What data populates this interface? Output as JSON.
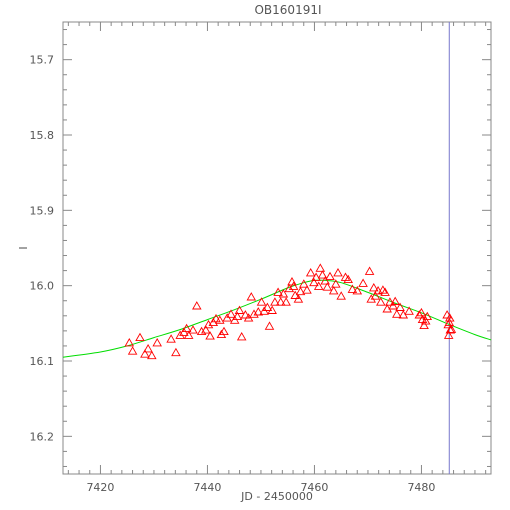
{
  "chart_data": {
    "type": "scatter",
    "title": "OB160191I",
    "xlabel": "JD - 2450000",
    "ylabel": "I",
    "xlim": [
      7413,
      7493
    ],
    "ylim": [
      16.25,
      15.65
    ],
    "y_inverted": true,
    "x_ticks": [
      7420,
      7440,
      7460,
      7480
    ],
    "y_ticks": [
      15.7,
      15.8,
      15.9,
      16.0,
      16.1,
      16.2
    ],
    "y_tick_labels": [
      "15.7",
      "15.8",
      "15.9",
      "16.0",
      "16.1",
      "16.2"
    ],
    "vertical_line_x": 7485.2,
    "marker": "open-triangle",
    "colors": {
      "points": "#ff0000",
      "model": "#00dd00",
      "vline": "#7777cc",
      "axes": "#888888",
      "text": "#555555"
    },
    "model_curve": {
      "x": [
        7413,
        7420,
        7425,
        7430,
        7435,
        7440,
        7445,
        7450,
        7455,
        7458,
        7460,
        7462,
        7465,
        7470,
        7475,
        7480,
        7485,
        7490,
        7493
      ],
      "y": [
        16.095,
        16.088,
        16.08,
        16.069,
        16.058,
        16.045,
        16.032,
        16.018,
        16.003,
        15.996,
        15.993,
        15.993,
        15.996,
        16.009,
        16.023,
        16.036,
        16.051,
        16.065,
        16.072
      ]
    },
    "series": [
      {
        "x": [
          7425.4,
          7426.0,
          7427.4,
          7428.3,
          7428.9,
          7429.6,
          7430.6,
          7433.2,
          7434.1,
          7434.9,
          7435.6,
          7436.1,
          7436.5,
          7437.3,
          7438.0,
          7438.9,
          7439.7,
          7440.2,
          7440.5,
          7441.1,
          7441.6,
          7442.3,
          7442.6,
          7443.1,
          7443.7,
          7444.4,
          7445.1,
          7445.6,
          7446.0,
          7446.4,
          7447.1,
          7447.7,
          7448.2,
          7448.7,
          7449.5,
          7450.1,
          7450.6,
          7451.2,
          7451.6,
          7452.1,
          7452.6,
          7453.2,
          7453.7,
          7454.2,
          7454.7,
          7455.3,
          7455.8,
          7456.1,
          7456.4,
          7457.0,
          7457.4,
          7458.0,
          7458.6,
          7459.3,
          7459.9,
          7460.3,
          7460.8,
          7461.1,
          7461.5,
          7462.0,
          7462.4,
          7462.9,
          7463.6,
          7464.0,
          7464.4,
          7465.0,
          7465.8,
          7466.3,
          7467.1,
          7468.0,
          7469.1,
          7470.3,
          7470.6,
          7471.1,
          7471.4,
          7471.9,
          7472.4,
          7472.8,
          7473.2,
          7473.6,
          7474.1,
          7474.7,
          7475.1,
          7475.4,
          7476.0,
          7476.6,
          7477.7,
          7479.6,
          7480.0,
          7480.2,
          7480.5,
          7480.8,
          7481.1,
          7484.8,
          7485.0,
          7485.2,
          7485.3,
          7485.4,
          7485.6,
          7485.1
        ],
        "y": [
          16.076,
          16.087,
          16.069,
          16.091,
          16.084,
          16.093,
          16.076,
          16.071,
          16.089,
          16.066,
          16.062,
          16.057,
          16.066,
          16.059,
          16.027,
          16.061,
          16.059,
          16.052,
          16.067,
          16.049,
          16.044,
          16.046,
          16.065,
          16.061,
          16.043,
          16.038,
          16.046,
          16.041,
          16.033,
          16.068,
          16.039,
          16.043,
          16.015,
          16.038,
          16.035,
          16.022,
          16.034,
          16.029,
          16.054,
          16.033,
          16.022,
          16.009,
          16.022,
          16.011,
          16.022,
          16.004,
          15.995,
          16.001,
          16.013,
          16.018,
          16.008,
          15.998,
          16.006,
          15.983,
          15.996,
          15.989,
          16.001,
          15.977,
          15.986,
          15.994,
          16.002,
          15.988,
          16.007,
          15.998,
          15.983,
          16.014,
          15.989,
          15.992,
          16.005,
          16.007,
          15.997,
          15.981,
          16.018,
          16.003,
          16.014,
          16.007,
          16.022,
          16.006,
          16.009,
          16.031,
          16.022,
          16.027,
          16.021,
          16.038,
          16.029,
          16.039,
          16.034,
          16.039,
          16.036,
          16.045,
          16.053,
          16.047,
          16.041,
          16.039,
          16.052,
          16.049,
          16.043,
          16.059,
          16.058,
          16.066
        ]
      }
    ]
  }
}
